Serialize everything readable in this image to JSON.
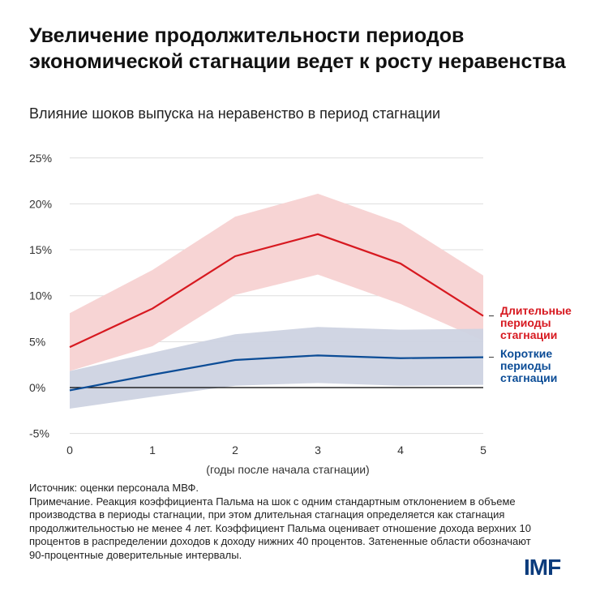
{
  "header": {
    "title": "Увеличение продолжительности периодов экономической стагнации ведет к росту неравенства",
    "subtitle": "Влияние шоков выпуска на неравенство в период стагнации"
  },
  "chart_data": {
    "type": "line",
    "x": [
      0,
      1,
      2,
      3,
      4,
      5
    ],
    "xlabel": "(годы после начала стагнации)",
    "ylim": [
      -5,
      25
    ],
    "yticks": [
      -5,
      0,
      5,
      10,
      15,
      20,
      25
    ],
    "ytick_labels": [
      "-5%",
      "0%",
      "5%",
      "10%",
      "15%",
      "20%",
      "25%"
    ],
    "grid": true,
    "legend_placement": "right, inline labels",
    "series": [
      {
        "name": "Длительные периоды стагнации",
        "color": "#d71920",
        "band_color": "#f7d4d4",
        "values": [
          4.4,
          8.6,
          14.3,
          16.7,
          13.5,
          7.8
        ],
        "upper": [
          8.1,
          12.8,
          18.6,
          21.1,
          17.9,
          12.2
        ],
        "lower": [
          1.8,
          4.5,
          10.1,
          12.3,
          9.1,
          5.1
        ]
      },
      {
        "name": "Короткие периоды стагнации",
        "color": "#0b4c96",
        "band_color": "#cdd3e1",
        "values": [
          -0.3,
          1.4,
          3.0,
          3.5,
          3.2,
          3.3
        ],
        "upper": [
          1.8,
          3.8,
          5.8,
          6.6,
          6.3,
          6.4
        ],
        "lower": [
          -2.3,
          -1.0,
          0.2,
          0.5,
          0.2,
          0.3
        ]
      }
    ]
  },
  "legend": {
    "long": [
      "Длительные",
      "периоды",
      "стагнации"
    ],
    "short": [
      "Короткие",
      "периоды",
      "стагнации"
    ]
  },
  "notes": {
    "source": "Источник: оценки персонала МВФ.",
    "note": "Примечание. Реакция коэффициента Пальма на шок с одним стандартным отклонением в объеме производства в периоды стагнации, при этом длительная стагнация определяется как стагнация продолжительностью не менее 4 лет. Коэффициент Пальма оценивает отношение дохода верхних 10 процентов в распределении доходов к доходу нижних 40 процентов. Затененные области обозначают 90-процентные доверительные интервалы."
  },
  "logo": "IMF"
}
